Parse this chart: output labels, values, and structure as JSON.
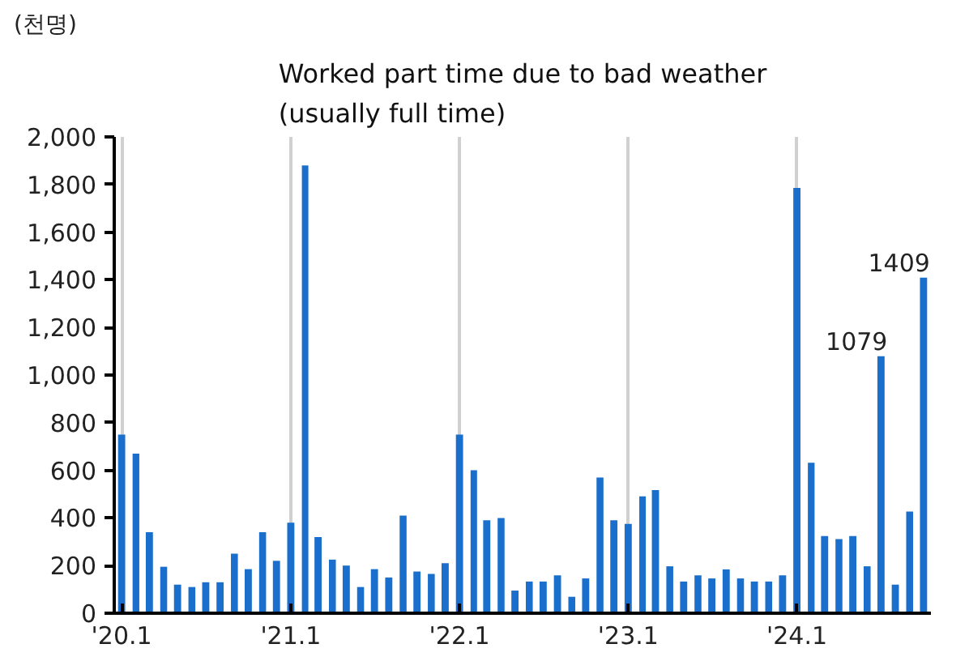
{
  "chart_data": {
    "type": "bar",
    "title": "Worked part time due to bad weather\n(usually full time)",
    "ylabel": "(천명)",
    "x": [
      "2020-01",
      "2020-02",
      "2020-03",
      "2020-04",
      "2020-05",
      "2020-06",
      "2020-07",
      "2020-08",
      "2020-09",
      "2020-10",
      "2020-11",
      "2020-12",
      "2021-01",
      "2021-02",
      "2021-03",
      "2021-04",
      "2021-05",
      "2021-06",
      "2021-07",
      "2021-08",
      "2021-09",
      "2021-10",
      "2021-11",
      "2021-12",
      "2022-01",
      "2022-02",
      "2022-03",
      "2022-04",
      "2022-05",
      "2022-06",
      "2022-07",
      "2022-08",
      "2022-09",
      "2022-10",
      "2022-11",
      "2022-12",
      "2023-01",
      "2023-02",
      "2023-03",
      "2023-04",
      "2023-05",
      "2023-06",
      "2023-07",
      "2023-08",
      "2023-09",
      "2023-10",
      "2023-11",
      "2023-12",
      "2024-01",
      "2024-02",
      "2024-03",
      "2024-04",
      "2024-05",
      "2024-06",
      "2024-07",
      "2024-08",
      "2024-09",
      "2024-10"
    ],
    "values": [
      750,
      670,
      340,
      195,
      120,
      110,
      130,
      130,
      250,
      185,
      340,
      220,
      380,
      1880,
      320,
      225,
      200,
      110,
      185,
      150,
      410,
      175,
      165,
      210,
      750,
      600,
      390,
      400,
      95,
      133,
      133,
      159,
      69,
      146,
      570,
      390,
      375,
      491,
      517,
      197,
      133,
      159,
      146,
      184,
      146,
      133,
      133,
      159,
      1786,
      632,
      324,
      311,
      324,
      197,
      1079,
      120,
      427,
      1409
    ],
    "value_labels": [
      null,
      null,
      null,
      null,
      null,
      null,
      null,
      null,
      null,
      null,
      null,
      null,
      null,
      null,
      null,
      null,
      null,
      null,
      null,
      null,
      null,
      null,
      null,
      null,
      null,
      null,
      null,
      null,
      null,
      null,
      null,
      null,
      null,
      null,
      null,
      null,
      null,
      null,
      null,
      null,
      null,
      null,
      null,
      null,
      null,
      null,
      null,
      null,
      null,
      null,
      null,
      null,
      null,
      null,
      "1079",
      null,
      null,
      "1409"
    ],
    "color": "#1a6fcc",
    "xlim": [
      "2019-12-16",
      "2024-10-17"
    ],
    "xticks": [
      {
        "value": "2020-01",
        "label": "'20.1"
      },
      {
        "value": "2021-01",
        "label": "'21.1"
      },
      {
        "value": "2022-01",
        "label": "'22.1"
      },
      {
        "value": "2023-01",
        "label": "'23.1"
      },
      {
        "value": "2024-01",
        "label": "'24.1"
      }
    ],
    "ylim": [
      0,
      2000
    ],
    "yticks": [
      {
        "value": 0,
        "label": "0"
      },
      {
        "value": 200,
        "label": "200"
      },
      {
        "value": 400,
        "label": "400"
      },
      {
        "value": 600,
        "label": "600"
      },
      {
        "value": 800,
        "label": "800"
      },
      {
        "value": 1000,
        "label": "1,000"
      },
      {
        "value": 1200,
        "label": "1,200"
      },
      {
        "value": 1400,
        "label": "1,400"
      },
      {
        "value": 1600,
        "label": "1,600"
      },
      {
        "value": 1800,
        "label": "1,800"
      },
      {
        "value": 2000,
        "label": "2,000"
      }
    ],
    "grid": "x"
  }
}
